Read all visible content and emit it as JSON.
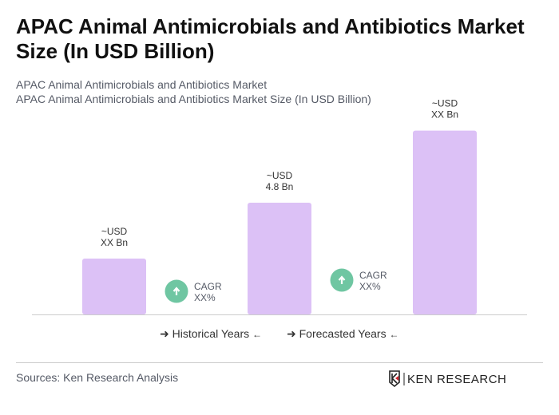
{
  "title": "APAC Animal Antimicrobials and Antibiotics Market Size (In USD Billion)",
  "subtitle1": "APAC Animal Antimicrobials and Antibiotics Market",
  "subtitle2": "APAC Animal Antimicrobials and Antibiotics Market Size (In USD Billion)",
  "chart_data": {
    "type": "bar",
    "values": [
      2.4,
      4.8,
      7.9
    ],
    "data_labels": [
      [
        "~USD",
        "XX Bn"
      ],
      [
        "~USD",
        "4.8 Bn"
      ],
      [
        "~USD",
        "XX Bn"
      ]
    ],
    "cagr": [
      {
        "label": "CAGR",
        "value": "XX%"
      },
      {
        "label": "CAGR",
        "value": "XX%"
      }
    ],
    "bar_color": "#dcc1f6",
    "cagr_color": "#6fc6a2",
    "grid": false
  },
  "legend": {
    "historical": "Historical Years",
    "forecasted": "Forecasted Years"
  },
  "source": "Sources: Ken Research Analysis",
  "logo_text": "KEN RESEARCH"
}
